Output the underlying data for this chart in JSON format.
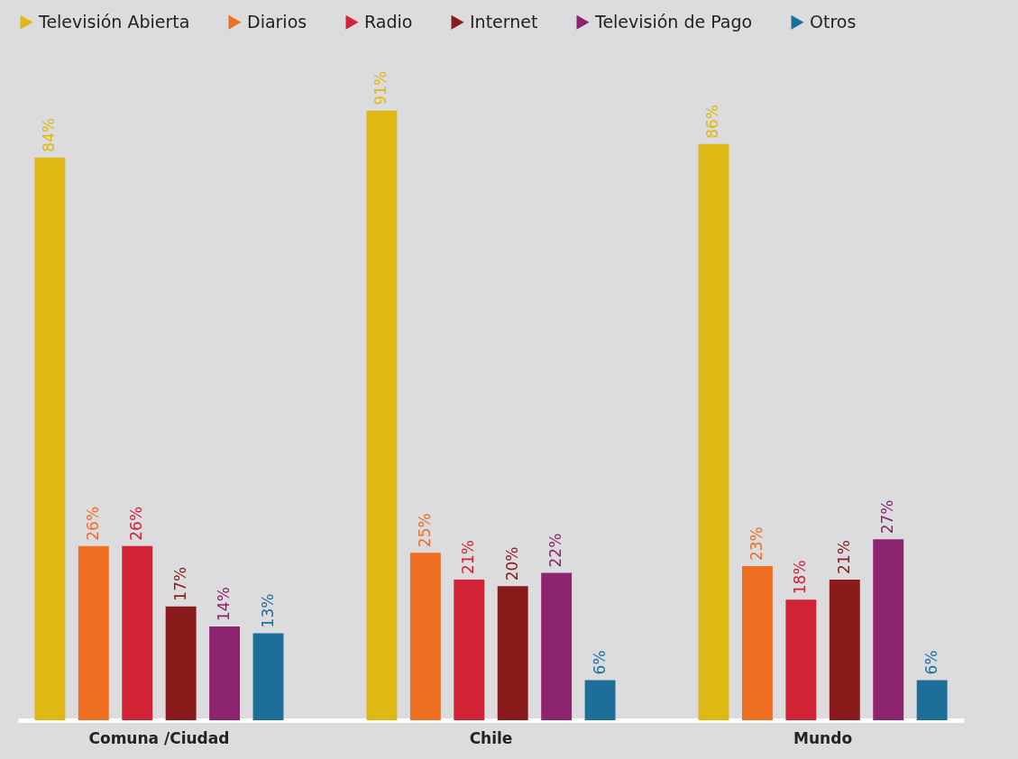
{
  "chart_data": {
    "type": "bar",
    "categories": [
      "Comuna /Ciudad",
      "Chile",
      "Mundo"
    ],
    "series": [
      {
        "name": "Televisión Abierta",
        "color": "#dfb814",
        "values": [
          84,
          91,
          86
        ],
        "value_labels": [
          "84%",
          "91%",
          "86%"
        ]
      },
      {
        "name": "Diarios",
        "color": "#ef6f23",
        "values": [
          26,
          25,
          23
        ],
        "value_labels": [
          "26%",
          "25%",
          "23%"
        ]
      },
      {
        "name": "Radio",
        "color": "#d22235",
        "values": [
          26,
          21,
          18
        ],
        "value_labels": [
          "26%",
          "21%",
          "18%"
        ]
      },
      {
        "name": "Internet",
        "color": "#8b1a1b",
        "values": [
          17,
          20,
          21
        ],
        "value_labels": [
          "17%",
          "20%",
          "21%"
        ]
      },
      {
        "name": "Televisión de Pago",
        "color": "#8c2470",
        "values": [
          14,
          22,
          27
        ],
        "value_labels": [
          "14%",
          "22%",
          "27%"
        ]
      },
      {
        "name": "Otros",
        "color": "#1e6e9a",
        "values": [
          13,
          6,
          6
        ],
        "value_labels": [
          "13%",
          "6%",
          "6%"
        ]
      }
    ],
    "legend": "top"
  }
}
